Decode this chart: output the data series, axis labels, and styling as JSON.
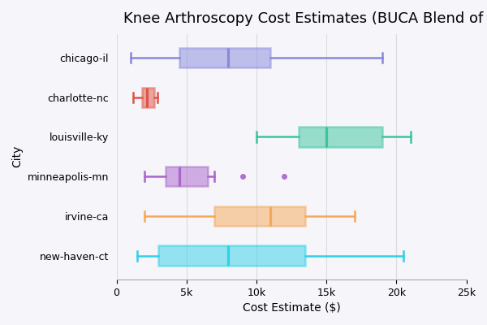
{
  "title": "Knee Arthroscopy Cost Estimates (BUCA Blend of Payers)",
  "xlabel": "Cost Estimate ($)",
  "ylabel": "City",
  "cities": [
    "chicago-il",
    "charlotte-nc",
    "louisville-ky",
    "minneapolis-mn",
    "irvine-ca",
    "new-haven-ct"
  ],
  "box_data": {
    "chicago-il": {
      "whislo": 1000,
      "q1": 4500,
      "med": 8000,
      "q3": 11000,
      "whishi": 19000,
      "fliers": []
    },
    "charlotte-nc": {
      "whislo": 1200,
      "q1": 1800,
      "med": 2200,
      "q3": 2700,
      "whishi": 2900,
      "fliers": []
    },
    "louisville-ky": {
      "whislo": 10000,
      "q1": 13000,
      "med": 15000,
      "q3": 19000,
      "whishi": 21000,
      "fliers": []
    },
    "minneapolis-mn": {
      "whislo": 2000,
      "q1": 3500,
      "med": 4500,
      "q3": 6500,
      "whishi": 7000,
      "fliers": [
        9000,
        12000
      ]
    },
    "irvine-ca": {
      "whislo": 2000,
      "q1": 7000,
      "med": 11000,
      "q3": 13500,
      "whishi": 17000,
      "fliers": []
    },
    "new-haven-ct": {
      "whislo": 1500,
      "q1": 3000,
      "med": 8000,
      "q3": 13500,
      "whishi": 20500,
      "fliers": []
    }
  },
  "colors": {
    "chicago-il": "#8888dd",
    "charlotte-nc": "#e05545",
    "louisville-ky": "#3cc4a0",
    "minneapolis-mn": "#aa66cc",
    "irvine-ca": "#f5a858",
    "new-haven-ct": "#30d0e8"
  },
  "xlim": [
    0,
    25000
  ],
  "xticks": [
    0,
    5000,
    10000,
    15000,
    20000,
    25000
  ],
  "xticklabels": [
    "0",
    "5k",
    "10k",
    "15k",
    "20k",
    "25k"
  ],
  "background_color": "#f5f5fa",
  "grid_color": "#dcdcdc",
  "title_fontsize": 13,
  "label_fontsize": 10,
  "tick_fontsize": 9,
  "box_width": 0.5,
  "linewidth": 1.8
}
